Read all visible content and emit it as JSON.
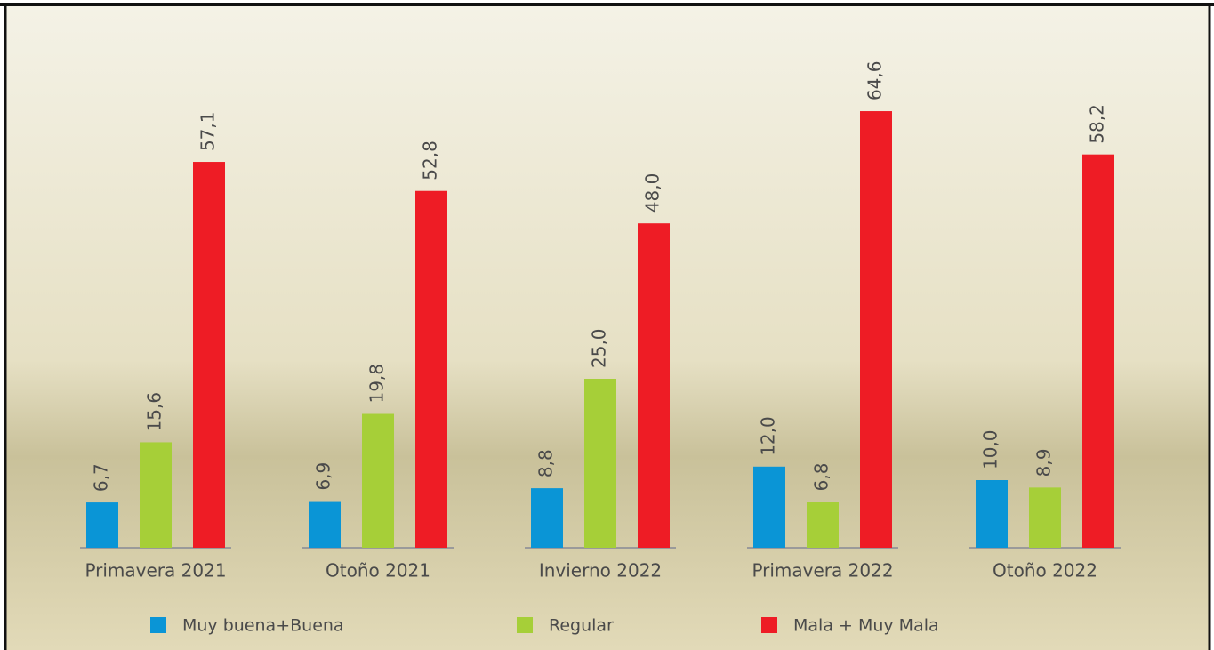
{
  "chart_data": {
    "type": "bar",
    "categories": [
      "Primavera 2021",
      "Otoño 2021",
      "Invierno 2022",
      "Primavera 2022",
      "Otoño 2022"
    ],
    "series": [
      {
        "name": "Muy buena+Buena",
        "color": "#0a95d6",
        "values": [
          6.7,
          6.9,
          8.8,
          12.0,
          10.0
        ],
        "value_labels": [
          "6,7",
          "6,9",
          "8,8",
          "12,0",
          "10,0"
        ]
      },
      {
        "name": "Regular",
        "color": "#a6cf38",
        "values": [
          15.6,
          19.8,
          25.0,
          6.8,
          8.9
        ],
        "value_labels": [
          "15,6",
          "19,8",
          "25,0",
          "6,8",
          "8,9"
        ]
      },
      {
        "name": "Mala + Muy Mala",
        "color": "#ee1c25",
        "values": [
          57.1,
          52.8,
          48.0,
          64.6,
          58.2
        ],
        "value_labels": [
          "57,1",
          "52,8",
          "48,0",
          "64,6",
          "58,2"
        ]
      }
    ],
    "ylim": [
      0,
      80
    ]
  }
}
